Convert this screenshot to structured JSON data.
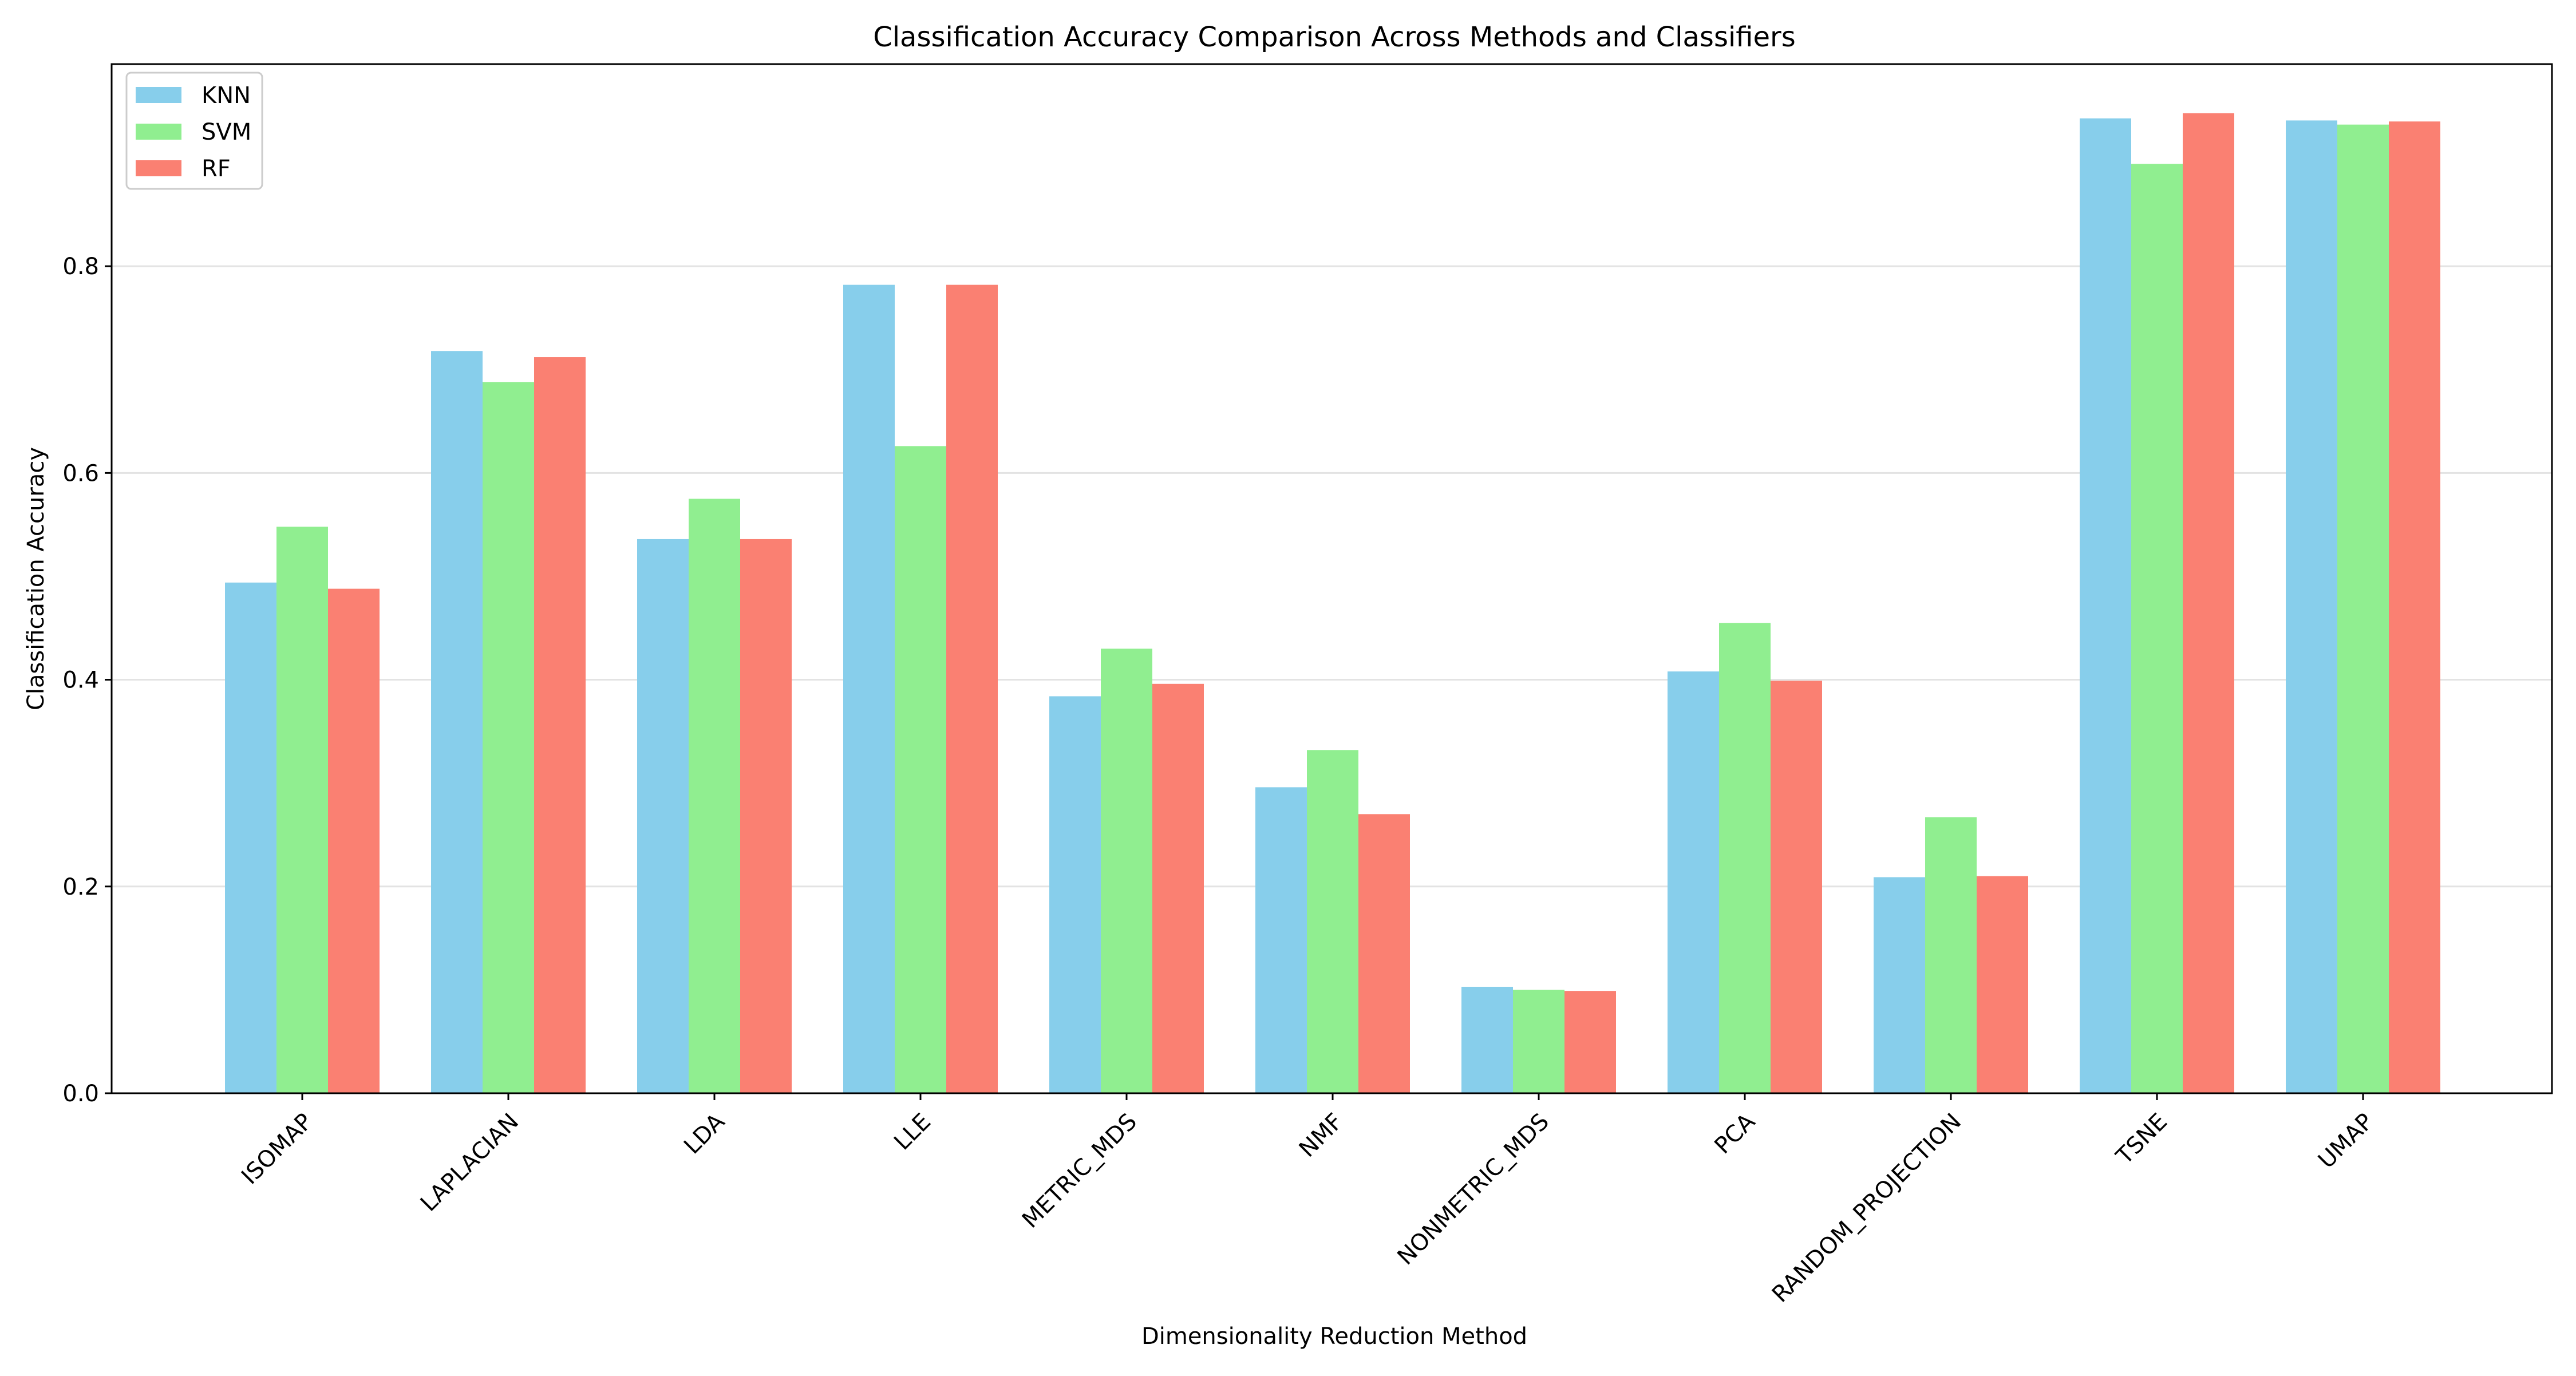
{
  "chart_data": {
    "type": "bar",
    "title": "Classification Accuracy Comparison Across Methods and Classifiers",
    "xlabel": "Dimensionality Reduction Method",
    "ylabel": "Classification Accuracy",
    "categories": [
      "ISOMAP",
      "LAPLACIAN",
      "LDA",
      "LLE",
      "METRIC_MDS",
      "NMF",
      "NONMETRIC_MDS",
      "PCA",
      "RANDOM_PROJECTION",
      "TSNE",
      "UMAP"
    ],
    "series": [
      {
        "name": "KNN",
        "color": "#87ceeb",
        "values": [
          0.494,
          0.718,
          0.536,
          0.782,
          0.384,
          0.296,
          0.103,
          0.408,
          0.209,
          0.943,
          0.941
        ]
      },
      {
        "name": "SVM",
        "color": "#90ee90",
        "values": [
          0.548,
          0.688,
          0.575,
          0.626,
          0.43,
          0.332,
          0.1,
          0.455,
          0.267,
          0.899,
          0.937
        ]
      },
      {
        "name": "RF",
        "color": "#fa8072",
        "values": [
          0.488,
          0.712,
          0.536,
          0.782,
          0.396,
          0.27,
          0.099,
          0.399,
          0.21,
          0.948,
          0.94
        ]
      }
    ],
    "yticks": [
      "0.0",
      "0.2",
      "0.4",
      "0.6",
      "0.8"
    ],
    "ylim": [
      0,
      0.9955
    ],
    "grid": "y-axis major",
    "legend_position": "upper-left"
  }
}
